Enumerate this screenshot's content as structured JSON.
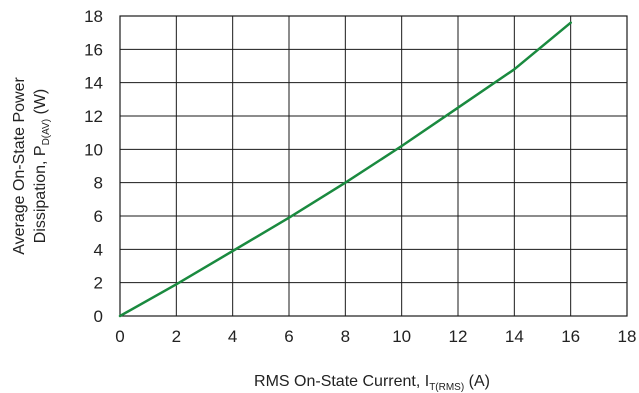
{
  "chart_data": {
    "type": "line",
    "xlabel": {
      "main": "RMS On-State Current, I",
      "sub": "T(RMS)",
      "unit": " (A)"
    },
    "ylabel": {
      "line1": "Average On-State Power",
      "line2_main": "Dissipation, P",
      "line2_sub": "D(AV)",
      "line2_unit": " (W)"
    },
    "xlim": [
      0,
      18
    ],
    "ylim": [
      0,
      18
    ],
    "xticks": [
      0,
      2,
      4,
      6,
      8,
      10,
      12,
      14,
      16,
      18
    ],
    "yticks": [
      0,
      2,
      4,
      6,
      8,
      10,
      12,
      14,
      16,
      18
    ],
    "grid": true,
    "series": [
      {
        "color": "#1a8a3f",
        "x": [
          0,
          2,
          4,
          6,
          8,
          10,
          12,
          14,
          16
        ],
        "y": [
          0,
          1.9,
          3.9,
          5.9,
          8.0,
          10.2,
          12.5,
          14.8,
          17.6
        ]
      }
    ]
  }
}
